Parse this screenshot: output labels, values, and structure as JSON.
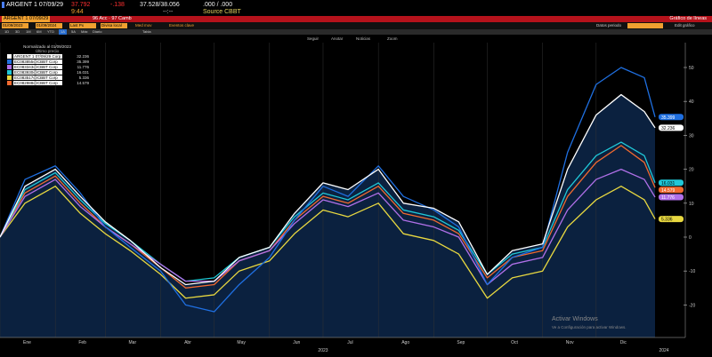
{
  "header": {
    "ticker": "ARGENT 1 07/09/29",
    "last": "37.792",
    "change": "-.138",
    "bid_ask": "37.528/38.056",
    "yield": ".000 / .000",
    "time": "9:44",
    "dashes": "--:--",
    "source": "Source CBBT"
  },
  "redbar": {
    "security": "ARGENT 1 07/09/29",
    "actions": "96 Acc · 97 Camb",
    "title": "Gráfico de líneas"
  },
  "inputs": {
    "start": "01/09/2023",
    "end": "01/09/2024",
    "field": "Last Px",
    "currency": "Divisa local",
    "options": [
      "Med mov",
      "Eventos clave"
    ]
  },
  "toolbar": {
    "periods": [
      "1D",
      "3D",
      "1M",
      "6M",
      "YTD",
      "1A",
      "5A",
      "Máx",
      "Diario"
    ],
    "table": "Tabla",
    "right": [
      "Datos periodo",
      "Edit gráfico"
    ]
  },
  "toolbar2": {
    "items": [
      "Seguir",
      "Anotar",
      "Noticias",
      "Zoom"
    ]
  },
  "legend": {
    "title": "Normalizado al 01/09/2023",
    "subtitle": "Último precio"
  },
  "watermark": {
    "line1": "Activar Windows",
    "line2": "Ve a Configuración para activar Windows."
  },
  "chart_data": {
    "type": "line",
    "title": "",
    "xlabel": "2023",
    "ylabel": "",
    "ylim": [
      -25,
      55
    ],
    "yticks": [
      -20,
      -10,
      0,
      10,
      20,
      30,
      40,
      50
    ],
    "xticks": [
      "Ene",
      "Feb",
      "Mar",
      "Abr",
      "May",
      "Jun",
      "Jul",
      "Ago",
      "Sep",
      "Oct",
      "Nov",
      "Dic"
    ],
    "year_labels": [
      "2023",
      "2024"
    ],
    "grid": true,
    "legend_position": "top-left",
    "dates": [
      "2023-01-01",
      "2023-01-15",
      "2023-02-01",
      "2023-02-15",
      "2023-03-01",
      "2023-03-15",
      "2023-04-01",
      "2023-04-15",
      "2023-05-01",
      "2023-05-15",
      "2023-06-01",
      "2023-06-15",
      "2023-07-01",
      "2023-07-15",
      "2023-08-01",
      "2023-08-15",
      "2023-09-01",
      "2023-09-15",
      "2023-10-01",
      "2023-10-15",
      "2023-11-01",
      "2023-11-15",
      "2023-12-01",
      "2023-12-15",
      "2023-12-28",
      "2024-01-03"
    ],
    "series": [
      {
        "name": "ARGENT 1 07/09/29 Corp",
        "color": "#ffffff",
        "last": "32.236",
        "values": [
          0,
          15,
          20,
          12,
          4.5,
          -1,
          -9,
          -14,
          -13,
          -6,
          -3,
          7,
          16,
          14,
          20,
          10,
          8.5,
          4.5,
          -11,
          -4,
          -2,
          20,
          36,
          42,
          37,
          32.236
        ]
      },
      {
        "name": "EC083855@CBBT Corp",
        "color": "#1f6fe0",
        "last": "35.399",
        "values": [
          0,
          17,
          21,
          13,
          3,
          -3,
          -10,
          -20,
          -22,
          -14,
          -6,
          5,
          15,
          12,
          21,
          12,
          8,
          3,
          -14,
          -6,
          -3,
          25,
          45,
          50,
          47,
          35.399
        ]
      },
      {
        "name": "EC083343@CBBT Corp",
        "color": "#b070e8",
        "last": "11.776",
        "values": [
          0,
          12,
          17,
          9,
          3,
          -2,
          -8,
          -13,
          -13,
          -7,
          -4,
          4,
          11,
          9,
          13,
          5,
          3,
          0,
          -14,
          -8,
          -6,
          8,
          17,
          20,
          17,
          11.776
        ]
      },
      {
        "name": "EC083930@CBBT Corp",
        "color": "#20c8d8",
        "last": "16.031",
        "values": [
          0,
          14,
          19,
          11,
          4,
          -1,
          -8,
          -13,
          -12,
          -6,
          -3,
          6,
          13,
          11,
          16,
          8,
          6,
          2,
          -11,
          -5,
          -3,
          14,
          24,
          28,
          24,
          16.031
        ]
      },
      {
        "name": "EC083517@CBBT Corp",
        "color": "#e8d840",
        "last": "5.336",
        "values": [
          0,
          10,
          15,
          7,
          1,
          -4,
          -11,
          -18,
          -17,
          -10,
          -7,
          1,
          8,
          6,
          10,
          1,
          -1,
          -5,
          -18,
          -12,
          -10,
          3,
          11,
          15,
          11,
          5.336
        ]
      },
      {
        "name": "EC082988@CBBT Corp",
        "color": "#f06a30",
        "last": "14.579",
        "values": [
          0,
          13,
          18,
          10,
          3,
          -2,
          -9,
          -15,
          -14,
          -7,
          -4,
          5,
          12,
          10,
          15,
          7,
          5,
          1,
          -12,
          -6,
          -4,
          12,
          22,
          27,
          22,
          14.579
        ]
      }
    ]
  }
}
